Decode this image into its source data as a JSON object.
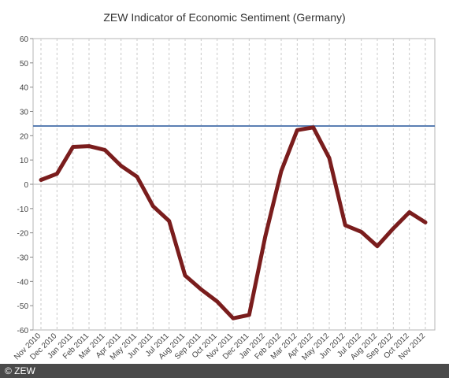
{
  "chart_data": {
    "type": "line",
    "title": "ZEW Indicator of Economic Sentiment (Germany)",
    "xlabel": "",
    "ylabel": "",
    "ylim": [
      -60,
      60
    ],
    "yticks": [
      60,
      50,
      40,
      30,
      20,
      10,
      0,
      -10,
      -20,
      -30,
      -40,
      -50,
      -60
    ],
    "grid": true,
    "legend": "none",
    "categories": [
      "Nov 2010",
      "Dec 2010",
      "Jan 2011",
      "Feb 2011",
      "Mar 2011",
      "Apr 2011",
      "May 2011",
      "Jun 2011",
      "Jul 2011",
      "Aug 2011",
      "Sep 2011",
      "Oct 2011",
      "Nov 2011",
      "Dec 2011",
      "Jan 2012",
      "Feb 2012",
      "Mar 2012",
      "Apr 2012",
      "May 2012",
      "Jun 2012",
      "Jul 2012",
      "Aug 2012",
      "Sep 2012",
      "Oct 2012",
      "Nov 2012"
    ],
    "series": [
      {
        "values": [
          1.8,
          4.3,
          15.4,
          15.7,
          14.1,
          7.6,
          3.1,
          -9.0,
          -15.1,
          -37.6,
          -43.3,
          -48.3,
          -55.2,
          -53.8,
          -21.6,
          5.4,
          22.3,
          23.4,
          10.8,
          -16.9,
          -19.6,
          -25.5,
          -18.2,
          -11.5,
          -15.7
        ],
        "color": "#7a1d1d"
      }
    ],
    "reference_line": {
      "value": 24,
      "color": "#5b7fb3"
    }
  },
  "credit": "© ZEW"
}
